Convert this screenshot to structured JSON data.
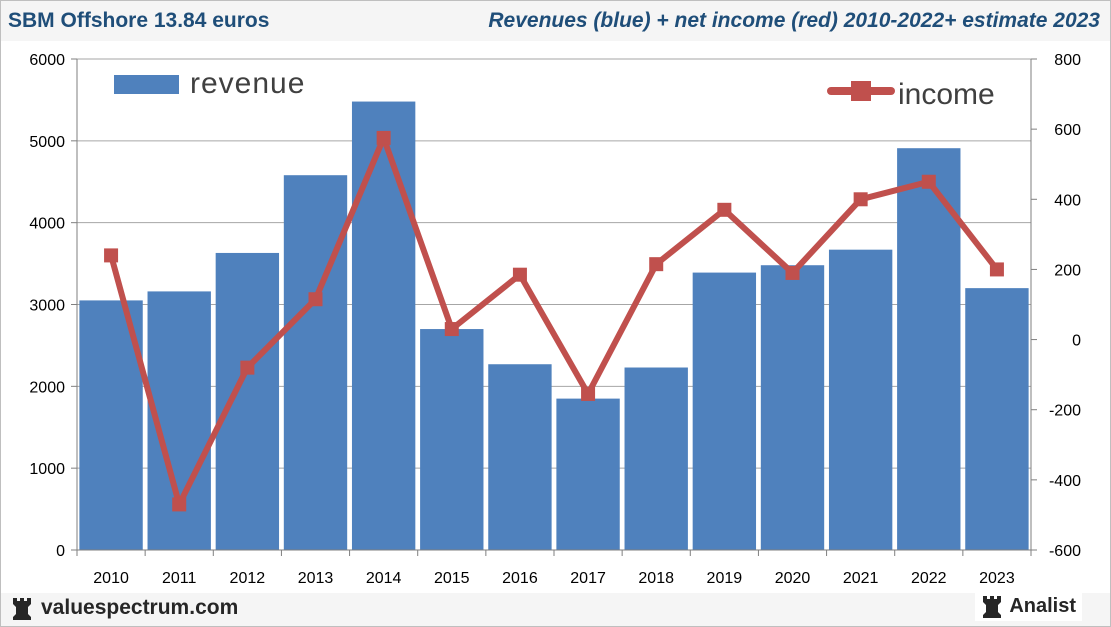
{
  "header": {
    "left_title": "SBM Offshore 13.84 euros",
    "right_title": "Revenues (blue) + net income (red) 2010-2022+ estimate 2023"
  },
  "footer": {
    "left_brand": "valuespectrum.com",
    "right_brand": "Analist",
    "left_icon": "chess-rook-icon",
    "right_icon": "chess-rook-icon"
  },
  "colors": {
    "revenue": "#4f81bd",
    "income": "#c0504d",
    "title": "#1f4e79"
  },
  "chart_data": {
    "type": "bar+line",
    "title": "Revenues (blue) + net income (red) 2010-2022+ estimate 2023",
    "categories": [
      "2010",
      "2011",
      "2012",
      "2013",
      "2014",
      "2015",
      "2016",
      "2017",
      "2018",
      "2019",
      "2020",
      "2021",
      "2022",
      "2023"
    ],
    "series": [
      {
        "name": "revenue",
        "type": "bar",
        "axis": "left",
        "values": [
          3050,
          3160,
          3630,
          4580,
          5480,
          2700,
          2270,
          1850,
          2230,
          3390,
          3480,
          3670,
          4910,
          3200
        ]
      },
      {
        "name": "income",
        "type": "line",
        "axis": "right",
        "values": [
          240,
          -470,
          -80,
          115,
          575,
          30,
          185,
          -155,
          215,
          370,
          190,
          400,
          450,
          200
        ]
      }
    ],
    "left_axis": {
      "min": 0,
      "max": 6000,
      "ticks": [
        "0",
        "1000",
        "2000",
        "3000",
        "4000",
        "5000",
        "6000"
      ]
    },
    "right_axis": {
      "min": -600,
      "max": 800,
      "ticks": [
        "-600",
        "-400",
        "-200",
        "0",
        "200",
        "400",
        "600",
        "800"
      ]
    },
    "gridlines": true,
    "legend": {
      "revenue": "revenue",
      "income": "income",
      "revenue_position": "top-left",
      "income_position": "top-right"
    }
  }
}
